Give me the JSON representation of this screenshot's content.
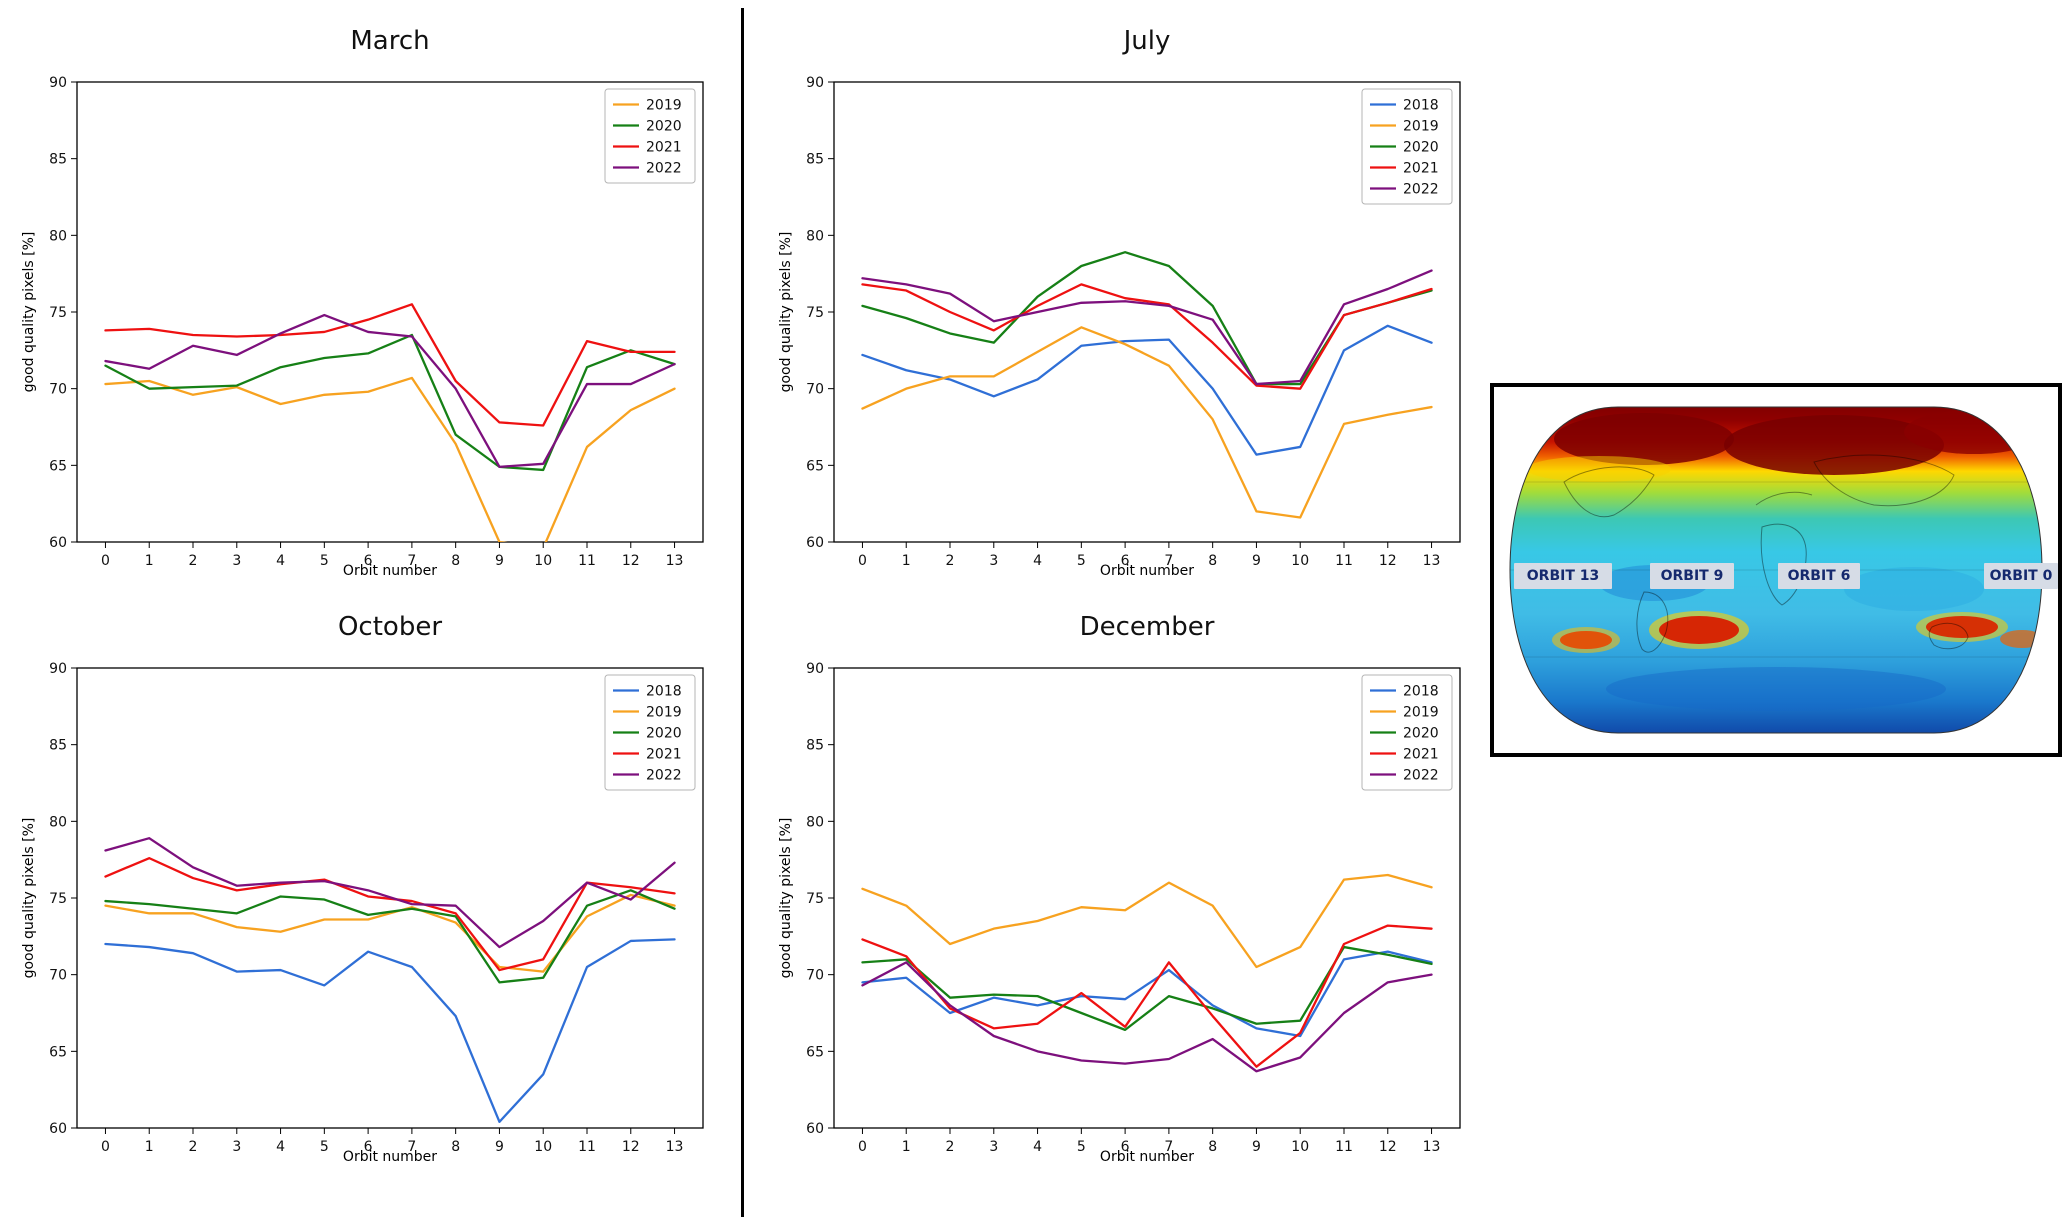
{
  "figure": {
    "background": "#ffffff"
  },
  "chart_data": [
    {
      "id": "march",
      "type": "line",
      "title": "March",
      "xlabel": "Orbit number",
      "ylabel": "good quality pixels [%]",
      "x": [
        0,
        1,
        2,
        3,
        4,
        5,
        6,
        7,
        8,
        9,
        10,
        11,
        12,
        13
      ],
      "ylim": [
        60,
        90
      ],
      "yticks": [
        60,
        65,
        70,
        75,
        80,
        85,
        90
      ],
      "grid": false,
      "legend_position": "top-right",
      "series": [
        {
          "name": "2019",
          "color": "#f7a220",
          "values": [
            70.3,
            70.5,
            69.6,
            70.1,
            69.0,
            69.6,
            69.8,
            70.7,
            66.4,
            60.0,
            59.6,
            66.2,
            68.6,
            70.0
          ]
        },
        {
          "name": "2020",
          "color": "#168016",
          "values": [
            71.5,
            70.0,
            70.1,
            70.2,
            71.4,
            72.0,
            72.3,
            73.5,
            67.0,
            64.9,
            64.7,
            71.4,
            72.5,
            71.6
          ]
        },
        {
          "name": "2021",
          "color": "#ee1111",
          "values": [
            73.8,
            73.9,
            73.5,
            73.4,
            73.5,
            73.7,
            74.5,
            75.5,
            70.5,
            67.8,
            67.6,
            73.1,
            72.4,
            72.4
          ]
        },
        {
          "name": "2022",
          "color": "#7d107d",
          "values": [
            71.8,
            71.3,
            72.8,
            72.2,
            73.6,
            74.8,
            73.7,
            73.4,
            70.0,
            64.9,
            65.1,
            70.3,
            70.3,
            71.6
          ]
        }
      ]
    },
    {
      "id": "july",
      "type": "line",
      "title": "July",
      "xlabel": "Orbit number",
      "ylabel": "good quality pixels [%]",
      "x": [
        0,
        1,
        2,
        3,
        4,
        5,
        6,
        7,
        8,
        9,
        10,
        11,
        12,
        13
      ],
      "ylim": [
        60,
        90
      ],
      "yticks": [
        60,
        65,
        70,
        75,
        80,
        85,
        90
      ],
      "grid": false,
      "legend_position": "top-right",
      "series": [
        {
          "name": "2018",
          "color": "#2f6fd6",
          "values": [
            72.2,
            71.2,
            70.6,
            69.5,
            70.6,
            72.8,
            73.1,
            73.2,
            70.0,
            65.7,
            66.2,
            72.5,
            74.1,
            73.0
          ]
        },
        {
          "name": "2019",
          "color": "#f7a220",
          "values": [
            68.7,
            70.0,
            70.8,
            70.8,
            72.4,
            74.0,
            72.9,
            71.5,
            68.0,
            62.0,
            61.6,
            67.7,
            68.3,
            68.8
          ]
        },
        {
          "name": "2020",
          "color": "#168016",
          "values": [
            75.4,
            74.6,
            73.6,
            73.0,
            76.0,
            78.0,
            78.9,
            78.0,
            75.4,
            70.3,
            70.3,
            74.8,
            75.6,
            76.4
          ]
        },
        {
          "name": "2021",
          "color": "#ee1111",
          "values": [
            76.8,
            76.4,
            75.0,
            73.8,
            75.4,
            76.8,
            75.9,
            75.5,
            73.0,
            70.2,
            70.0,
            74.8,
            75.6,
            76.5
          ]
        },
        {
          "name": "2022",
          "color": "#7d107d",
          "values": [
            77.2,
            76.8,
            76.2,
            74.4,
            75.0,
            75.6,
            75.7,
            75.4,
            74.5,
            70.3,
            70.5,
            75.5,
            76.5,
            77.7
          ]
        }
      ]
    },
    {
      "id": "october",
      "type": "line",
      "title": "October",
      "xlabel": "Orbit number",
      "ylabel": "good quality pixels [%]",
      "x": [
        0,
        1,
        2,
        3,
        4,
        5,
        6,
        7,
        8,
        9,
        10,
        11,
        12,
        13
      ],
      "ylim": [
        60,
        90
      ],
      "yticks": [
        60,
        65,
        70,
        75,
        80,
        85,
        90
      ],
      "grid": false,
      "legend_position": "top-right",
      "series": [
        {
          "name": "2018",
          "color": "#2f6fd6",
          "values": [
            72.0,
            71.8,
            71.4,
            70.2,
            70.3,
            69.3,
            71.5,
            70.5,
            67.3,
            60.4,
            63.5,
            70.5,
            72.2,
            72.3
          ]
        },
        {
          "name": "2019",
          "color": "#f7a220",
          "values": [
            74.5,
            74.0,
            74.0,
            73.1,
            72.8,
            73.6,
            73.6,
            74.4,
            73.4,
            70.5,
            70.2,
            73.8,
            75.2,
            74.5
          ]
        },
        {
          "name": "2020",
          "color": "#168016",
          "values": [
            74.8,
            74.6,
            74.3,
            74.0,
            75.1,
            74.9,
            73.9,
            74.3,
            73.8,
            69.5,
            69.8,
            74.5,
            75.5,
            74.3
          ]
        },
        {
          "name": "2021",
          "color": "#ee1111",
          "values": [
            76.4,
            77.6,
            76.3,
            75.5,
            75.9,
            76.2,
            75.1,
            74.8,
            74.0,
            70.3,
            71.0,
            76.0,
            75.7,
            75.3
          ]
        },
        {
          "name": "2022",
          "color": "#7d107d",
          "values": [
            78.1,
            78.9,
            77.0,
            75.8,
            76.0,
            76.1,
            75.5,
            74.6,
            74.5,
            71.8,
            73.5,
            76.0,
            74.9,
            77.3
          ]
        }
      ]
    },
    {
      "id": "december",
      "type": "line",
      "title": "December",
      "xlabel": "Orbit number",
      "ylabel": "good quality pixels [%]",
      "x": [
        0,
        1,
        2,
        3,
        4,
        5,
        6,
        7,
        8,
        9,
        10,
        11,
        12,
        13
      ],
      "ylim": [
        60,
        90
      ],
      "yticks": [
        60,
        65,
        70,
        75,
        80,
        85,
        90
      ],
      "grid": false,
      "legend_position": "top-right",
      "series": [
        {
          "name": "2018",
          "color": "#2f6fd6",
          "values": [
            69.5,
            69.8,
            67.5,
            68.5,
            68.0,
            68.6,
            68.4,
            70.3,
            68.0,
            66.5,
            66.0,
            71.0,
            71.5,
            70.8
          ]
        },
        {
          "name": "2019",
          "color": "#f7a220",
          "values": [
            75.6,
            74.5,
            72.0,
            73.0,
            73.5,
            74.4,
            74.2,
            76.0,
            74.5,
            70.5,
            71.8,
            76.2,
            76.5,
            75.7
          ]
        },
        {
          "name": "2020",
          "color": "#168016",
          "values": [
            70.8,
            71.0,
            68.5,
            68.7,
            68.6,
            67.5,
            66.4,
            68.6,
            67.8,
            66.8,
            67.0,
            71.8,
            71.3,
            70.7
          ]
        },
        {
          "name": "2021",
          "color": "#ee1111",
          "values": [
            72.3,
            71.2,
            67.8,
            66.5,
            66.8,
            68.8,
            66.6,
            70.8,
            67.3,
            64.0,
            66.2,
            72.0,
            73.2,
            73.0
          ]
        },
        {
          "name": "2022",
          "color": "#7d107d",
          "values": [
            69.3,
            70.8,
            68.0,
            66.0,
            65.0,
            64.4,
            64.2,
            64.5,
            65.8,
            63.7,
            64.6,
            67.5,
            69.5,
            70.0
          ]
        }
      ]
    }
  ],
  "map": {
    "description": "world-map-heatmap-inset",
    "label_bg": "#d6dce6",
    "label_color": "#15296e",
    "orbit_labels": [
      {
        "label": "ORBIT 13"
      },
      {
        "label": "ORBIT 9"
      },
      {
        "label": "ORBIT 6"
      },
      {
        "label": "ORBIT 0"
      }
    ],
    "palette_hint": [
      "#7a0000",
      "#e03000",
      "#ffe000",
      "#90d840",
      "#35c8e8",
      "#1060c0"
    ]
  }
}
